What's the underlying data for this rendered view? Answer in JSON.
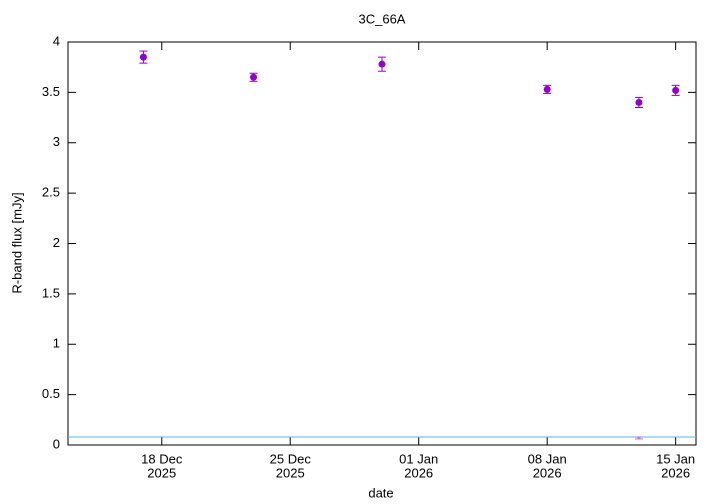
{
  "chart_data": {
    "type": "scatter",
    "title": "3C_66A",
    "x_label": "date",
    "y_label": "R-band flux [mJy]",
    "series": [
      {
        "color": "#9400d3",
        "x": [
          "2025-12-17",
          "2025-12-23",
          "2025-12-30",
          "2026-01-08",
          "2026-01-13",
          "2026-01-15"
        ],
        "values": [
          3.85,
          3.65,
          3.78,
          3.53,
          3.4,
          3.52
        ],
        "errors": [
          0.06,
          0.04,
          0.07,
          0.04,
          0.05,
          0.05
        ]
      },
      {
        "color": "#b57be0",
        "x": [
          "2026-01-13"
        ],
        "values": [
          0.07
        ],
        "errors": [
          0.01
        ]
      }
    ],
    "hline": {
      "value": 0.08,
      "color": "#56b4e9"
    },
    "xlim": [
      "2025-12-13",
      "2026-01-16"
    ],
    "xticks": [
      {
        "value": "2025-12-18",
        "label": [
          "18 Dec",
          "2025"
        ]
      },
      {
        "value": "2025-12-25",
        "label": [
          "25 Dec",
          "2025"
        ]
      },
      {
        "value": "2026-01-01",
        "label": [
          "01 Jan",
          "2026"
        ]
      },
      {
        "value": "2026-01-08",
        "label": [
          "08 Jan",
          "2026"
        ]
      },
      {
        "value": "2026-01-15",
        "label": [
          "15 Jan",
          "2026"
        ]
      }
    ],
    "ylim": [
      0,
      4
    ],
    "yticks": [
      0,
      0.5,
      1,
      1.5,
      2,
      2.5,
      3,
      3.5,
      4
    ]
  }
}
